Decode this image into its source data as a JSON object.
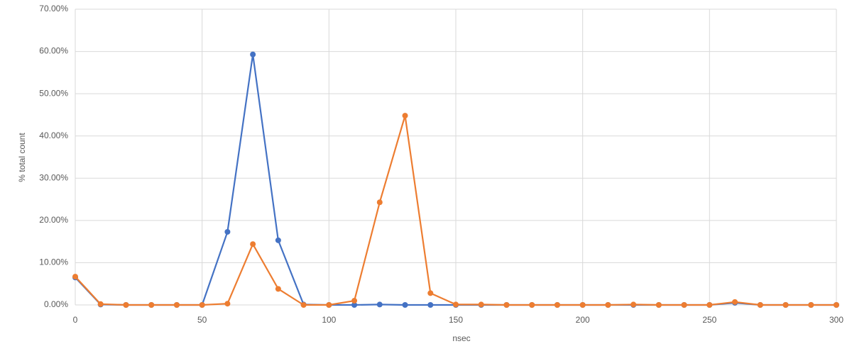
{
  "chart_data": {
    "type": "line",
    "x_label": "nsec",
    "y_label": "% total count",
    "x": [
      0,
      10,
      20,
      30,
      40,
      50,
      60,
      70,
      80,
      90,
      100,
      110,
      120,
      130,
      140,
      150,
      160,
      170,
      180,
      190,
      200,
      210,
      220,
      230,
      240,
      250,
      260,
      270,
      280,
      290,
      300
    ],
    "series": [
      {
        "color": "#4472c4",
        "values": [
          6.5,
          0.1,
          0,
          0,
          0,
          0,
          17.3,
          59.3,
          15.3,
          0.1,
          0,
          0,
          0.1,
          0,
          0,
          0,
          0,
          0,
          0,
          0,
          0,
          0,
          0,
          0,
          0,
          0,
          0.5,
          0,
          0,
          0,
          0
        ]
      },
      {
        "color": "#ed7d31",
        "values": [
          6.7,
          0.2,
          0,
          0,
          0,
          0,
          0.3,
          14.4,
          3.8,
          0,
          0,
          1.0,
          24.3,
          44.8,
          2.8,
          0.1,
          0.1,
          0,
          0,
          0,
          0,
          0,
          0.1,
          0,
          0,
          0,
          0.7,
          0,
          0,
          0,
          0
        ]
      }
    ],
    "xlim": [
      0,
      300
    ],
    "xticks": [
      0,
      50,
      100,
      150,
      200,
      250,
      300
    ],
    "ylim": [
      0,
      70
    ],
    "yticks": [
      {
        "value": 0,
        "label": "0.00%"
      },
      {
        "value": 10,
        "label": "10.00%"
      },
      {
        "value": 20,
        "label": "20.00%"
      },
      {
        "value": 30,
        "label": "30.00%"
      },
      {
        "value": 40,
        "label": "40.00%"
      },
      {
        "value": 50,
        "label": "50.00%"
      },
      {
        "value": 60,
        "label": "60.00%"
      },
      {
        "value": 70,
        "label": "70.00%"
      }
    ],
    "grid": true
  }
}
